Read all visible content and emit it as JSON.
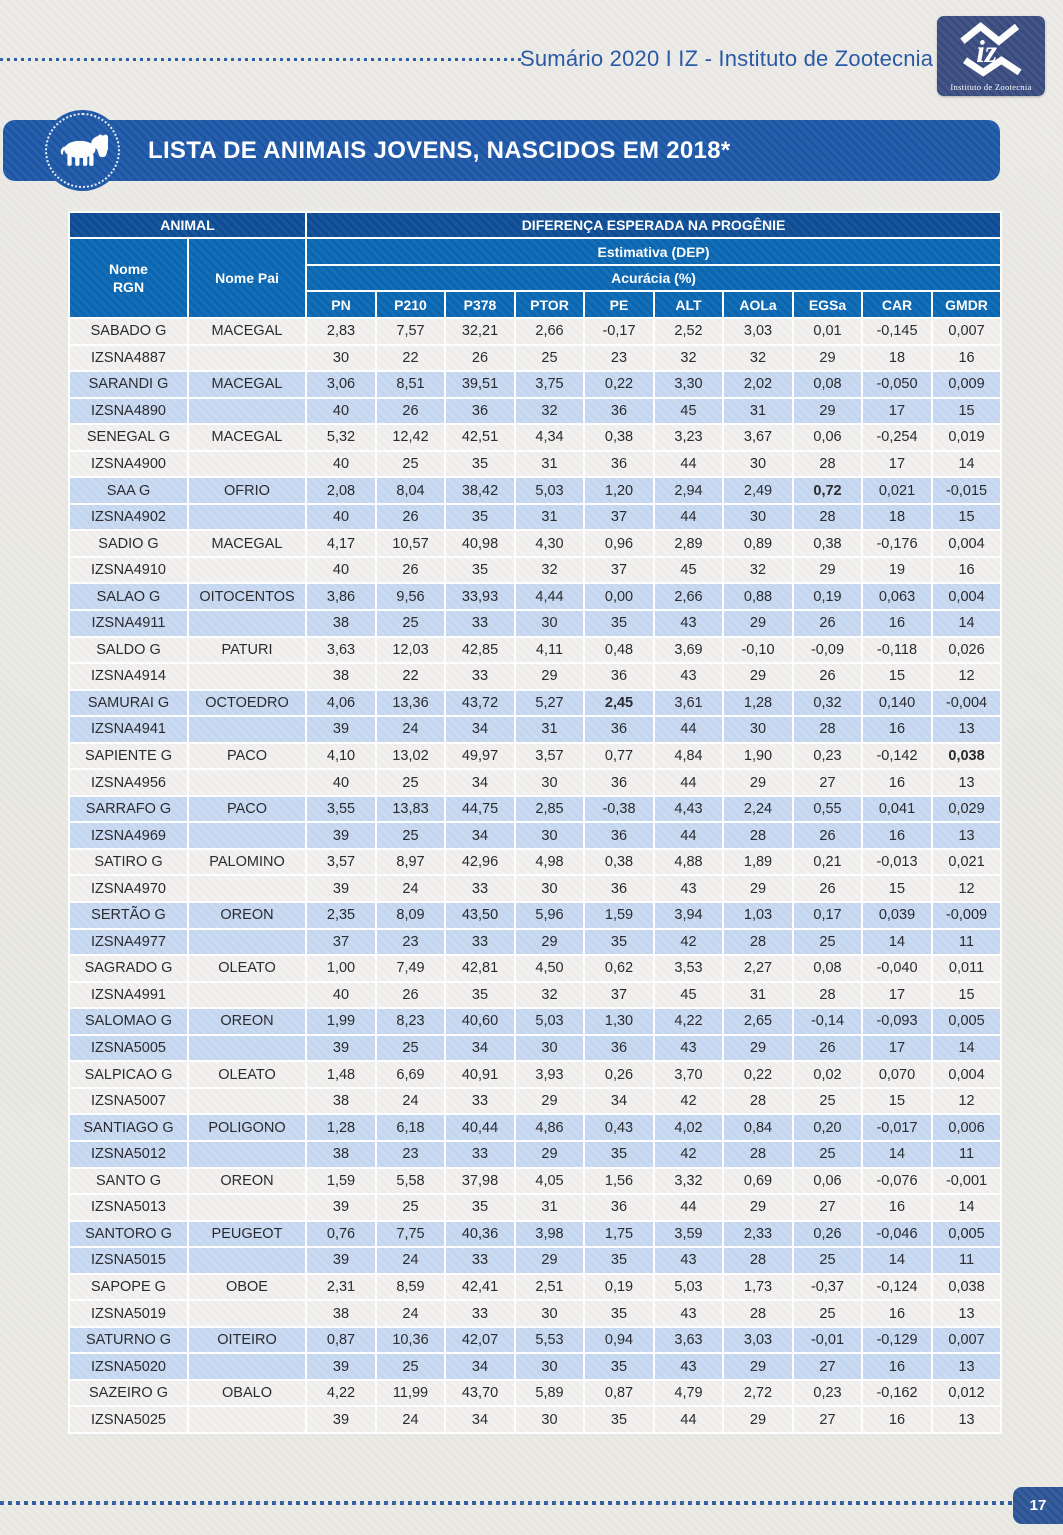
{
  "header": {
    "summary_text": "Sumário 2020 I IZ - Instituto de Zootecnia",
    "logo_monogram": "iz",
    "logo_caption": "Instituto de Zootecnia"
  },
  "banner": {
    "title": "LISTA DE ANIMAIS JOVENS, NASCIDOS EM 2018*",
    "icon": "cow-icon"
  },
  "footer": {
    "page_number": "17"
  },
  "colors": {
    "banner_blue": "#1d57a7",
    "header_navy": "#0d4c95",
    "header_blue": "#0a67b2",
    "row_blue": "#c6d8f1",
    "row_white": "#f1f0ee",
    "accent_text": "#2456a4",
    "logo_navy": "#3a4c80"
  },
  "table": {
    "group_animal": "ANIMAL",
    "group_progeny": "DIFERENÇA ESPERADA NA PROGÊNIE",
    "header_name_rgn": "Nome\nRGN",
    "header_sire": "Nome Pai",
    "header_estimate": "Estimativa (DEP)",
    "header_accuracy": "Acurácia (%)",
    "columns": [
      "PN",
      "P210",
      "P378",
      "PTOR",
      "PE",
      "ALT",
      "AOLa",
      "EGSa",
      "CAR",
      "GMDR"
    ],
    "animals": [
      {
        "name": "SABADO G",
        "sire": "MACEGAL",
        "rgn": "IZSNA4887",
        "dep": [
          "2,83",
          "7,57",
          "32,21",
          "2,66",
          "-0,17",
          "2,52",
          "3,03",
          "0,01",
          "-0,145",
          "0,007"
        ],
        "acc": [
          "30",
          "22",
          "26",
          "25",
          "23",
          "32",
          "32",
          "29",
          "18",
          "16"
        ],
        "bold": []
      },
      {
        "name": "SARANDI G",
        "sire": "MACEGAL",
        "rgn": "IZSNA4890",
        "dep": [
          "3,06",
          "8,51",
          "39,51",
          "3,75",
          "0,22",
          "3,30",
          "2,02",
          "0,08",
          "-0,050",
          "0,009"
        ],
        "acc": [
          "40",
          "26",
          "36",
          "32",
          "36",
          "45",
          "31",
          "29",
          "17",
          "15"
        ],
        "bold": []
      },
      {
        "name": "SENEGAL G",
        "sire": "MACEGAL",
        "rgn": "IZSNA4900",
        "dep": [
          "5,32",
          "12,42",
          "42,51",
          "4,34",
          "0,38",
          "3,23",
          "3,67",
          "0,06",
          "-0,254",
          "0,019"
        ],
        "acc": [
          "40",
          "25",
          "35",
          "31",
          "36",
          "44",
          "30",
          "28",
          "17",
          "14"
        ],
        "bold": []
      },
      {
        "name": "SAA G",
        "sire": "OFRIO",
        "rgn": "IZSNA4902",
        "dep": [
          "2,08",
          "8,04",
          "38,42",
          "5,03",
          "1,20",
          "2,94",
          "2,49",
          "0,72",
          "0,021",
          "-0,015"
        ],
        "acc": [
          "40",
          "26",
          "35",
          "31",
          "37",
          "44",
          "30",
          "28",
          "18",
          "15"
        ],
        "bold": [
          7
        ]
      },
      {
        "name": "SADIO G",
        "sire": "MACEGAL",
        "rgn": "IZSNA4910",
        "dep": [
          "4,17",
          "10,57",
          "40,98",
          "4,30",
          "0,96",
          "2,89",
          "0,89",
          "0,38",
          "-0,176",
          "0,004"
        ],
        "acc": [
          "40",
          "26",
          "35",
          "32",
          "37",
          "45",
          "32",
          "29",
          "19",
          "16"
        ],
        "bold": []
      },
      {
        "name": "SALAO G",
        "sire": "OITOCENTOS",
        "rgn": "IZSNA4911",
        "dep": [
          "3,86",
          "9,56",
          "33,93",
          "4,44",
          "0,00",
          "2,66",
          "0,88",
          "0,19",
          "0,063",
          "0,004"
        ],
        "acc": [
          "38",
          "25",
          "33",
          "30",
          "35",
          "43",
          "29",
          "26",
          "16",
          "14"
        ],
        "bold": []
      },
      {
        "name": "SALDO G",
        "sire": "PATURI",
        "rgn": "IZSNA4914",
        "dep": [
          "3,63",
          "12,03",
          "42,85",
          "4,11",
          "0,48",
          "3,69",
          "-0,10",
          "-0,09",
          "-0,118",
          "0,026"
        ],
        "acc": [
          "38",
          "22",
          "33",
          "29",
          "36",
          "43",
          "29",
          "26",
          "15",
          "12"
        ],
        "bold": []
      },
      {
        "name": "SAMURAI G",
        "sire": "OCTOEDRO",
        "rgn": "IZSNA4941",
        "dep": [
          "4,06",
          "13,36",
          "43,72",
          "5,27",
          "2,45",
          "3,61",
          "1,28",
          "0,32",
          "0,140",
          "-0,004"
        ],
        "acc": [
          "39",
          "24",
          "34",
          "31",
          "36",
          "44",
          "30",
          "28",
          "16",
          "13"
        ],
        "bold": [
          4
        ]
      },
      {
        "name": "SAPIENTE G",
        "sire": "PACO",
        "rgn": "IZSNA4956",
        "dep": [
          "4,10",
          "13,02",
          "49,97",
          "3,57",
          "0,77",
          "4,84",
          "1,90",
          "0,23",
          "-0,142",
          "0,038"
        ],
        "acc": [
          "40",
          "25",
          "34",
          "30",
          "36",
          "44",
          "29",
          "27",
          "16",
          "13"
        ],
        "bold": [
          9
        ]
      },
      {
        "name": "SARRAFO G",
        "sire": "PACO",
        "rgn": "IZSNA4969",
        "dep": [
          "3,55",
          "13,83",
          "44,75",
          "2,85",
          "-0,38",
          "4,43",
          "2,24",
          "0,55",
          "0,041",
          "0,029"
        ],
        "acc": [
          "39",
          "25",
          "34",
          "30",
          "36",
          "44",
          "28",
          "26",
          "16",
          "13"
        ],
        "bold": []
      },
      {
        "name": "SATIRO G",
        "sire": "PALOMINO",
        "rgn": "IZSNA4970",
        "dep": [
          "3,57",
          "8,97",
          "42,96",
          "4,98",
          "0,38",
          "4,88",
          "1,89",
          "0,21",
          "-0,013",
          "0,021"
        ],
        "acc": [
          "39",
          "24",
          "33",
          "30",
          "36",
          "43",
          "29",
          "26",
          "15",
          "12"
        ],
        "bold": []
      },
      {
        "name": "SERTÃO G",
        "sire": "OREON",
        "rgn": "IZSNA4977",
        "dep": [
          "2,35",
          "8,09",
          "43,50",
          "5,96",
          "1,59",
          "3,94",
          "1,03",
          "0,17",
          "0,039",
          "-0,009"
        ],
        "acc": [
          "37",
          "23",
          "33",
          "29",
          "35",
          "42",
          "28",
          "25",
          "14",
          "11"
        ],
        "bold": []
      },
      {
        "name": "SAGRADO G",
        "sire": "OLEATO",
        "rgn": "IZSNA4991",
        "dep": [
          "1,00",
          "7,49",
          "42,81",
          "4,50",
          "0,62",
          "3,53",
          "2,27",
          "0,08",
          "-0,040",
          "0,011"
        ],
        "acc": [
          "40",
          "26",
          "35",
          "32",
          "37",
          "45",
          "31",
          "28",
          "17",
          "15"
        ],
        "bold": []
      },
      {
        "name": "SALOMAO G",
        "sire": "OREON",
        "rgn": "IZSNA5005",
        "dep": [
          "1,99",
          "8,23",
          "40,60",
          "5,03",
          "1,30",
          "4,22",
          "2,65",
          "-0,14",
          "-0,093",
          "0,005"
        ],
        "acc": [
          "39",
          "25",
          "34",
          "30",
          "36",
          "43",
          "29",
          "26",
          "17",
          "14"
        ],
        "bold": []
      },
      {
        "name": "SALPICAO G",
        "sire": "OLEATO",
        "rgn": "IZSNA5007",
        "dep": [
          "1,48",
          "6,69",
          "40,91",
          "3,93",
          "0,26",
          "3,70",
          "0,22",
          "0,02",
          "0,070",
          "0,004"
        ],
        "acc": [
          "38",
          "24",
          "33",
          "29",
          "34",
          "42",
          "28",
          "25",
          "15",
          "12"
        ],
        "bold": []
      },
      {
        "name": "SANTIAGO G",
        "sire": "POLIGONO",
        "rgn": "IZSNA5012",
        "dep": [
          "1,28",
          "6,18",
          "40,44",
          "4,86",
          "0,43",
          "4,02",
          "0,84",
          "0,20",
          "-0,017",
          "0,006"
        ],
        "acc": [
          "38",
          "23",
          "33",
          "29",
          "35",
          "42",
          "28",
          "25",
          "14",
          "11"
        ],
        "bold": []
      },
      {
        "name": "SANTO G",
        "sire": "OREON",
        "rgn": "IZSNA5013",
        "dep": [
          "1,59",
          "5,58",
          "37,98",
          "4,05",
          "1,56",
          "3,32",
          "0,69",
          "0,06",
          "-0,076",
          "-0,001"
        ],
        "acc": [
          "39",
          "25",
          "35",
          "31",
          "36",
          "44",
          "29",
          "27",
          "16",
          "14"
        ],
        "bold": []
      },
      {
        "name": "SANTORO G",
        "sire": "PEUGEOT",
        "rgn": "IZSNA5015",
        "dep": [
          "0,76",
          "7,75",
          "40,36",
          "3,98",
          "1,75",
          "3,59",
          "2,33",
          "0,26",
          "-0,046",
          "0,005"
        ],
        "acc": [
          "39",
          "24",
          "33",
          "29",
          "35",
          "43",
          "28",
          "25",
          "14",
          "11"
        ],
        "bold": []
      },
      {
        "name": "SAPOPE G",
        "sire": "OBOE",
        "rgn": "IZSNA5019",
        "dep": [
          "2,31",
          "8,59",
          "42,41",
          "2,51",
          "0,19",
          "5,03",
          "1,73",
          "-0,37",
          "-0,124",
          "0,038"
        ],
        "acc": [
          "38",
          "24",
          "33",
          "30",
          "35",
          "43",
          "28",
          "25",
          "16",
          "13"
        ],
        "bold": []
      },
      {
        "name": "SATURNO G",
        "sire": "OITEIRO",
        "rgn": "IZSNA5020",
        "dep": [
          "0,87",
          "10,36",
          "42,07",
          "5,53",
          "0,94",
          "3,63",
          "3,03",
          "-0,01",
          "-0,129",
          "0,007"
        ],
        "acc": [
          "39",
          "25",
          "34",
          "30",
          "35",
          "43",
          "29",
          "27",
          "16",
          "13"
        ],
        "bold": []
      },
      {
        "name": "SAZEIRO G",
        "sire": "OBALO",
        "rgn": "IZSNA5025",
        "dep": [
          "4,22",
          "11,99",
          "43,70",
          "5,89",
          "0,87",
          "4,79",
          "2,72",
          "0,23",
          "-0,162",
          "0,012"
        ],
        "acc": [
          "39",
          "24",
          "34",
          "30",
          "35",
          "44",
          "29",
          "27",
          "16",
          "13"
        ],
        "bold": []
      }
    ]
  }
}
